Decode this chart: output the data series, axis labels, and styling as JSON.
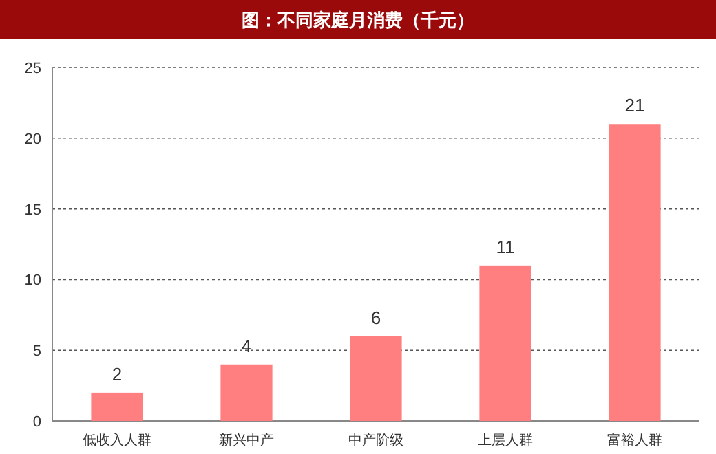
{
  "chart_data": {
    "type": "bar",
    "title": "图：不同家庭月消费（千元）",
    "categories": [
      "低收入人群",
      "新兴中产",
      "中产阶级",
      "上层人群",
      "富裕人群"
    ],
    "values": [
      2,
      4,
      6,
      11,
      21
    ],
    "color": "#ff7f80",
    "ylim": [
      0,
      25
    ],
    "yticks": [
      0,
      5,
      10,
      15,
      20,
      25
    ],
    "grid": "y",
    "data_labels": true
  }
}
